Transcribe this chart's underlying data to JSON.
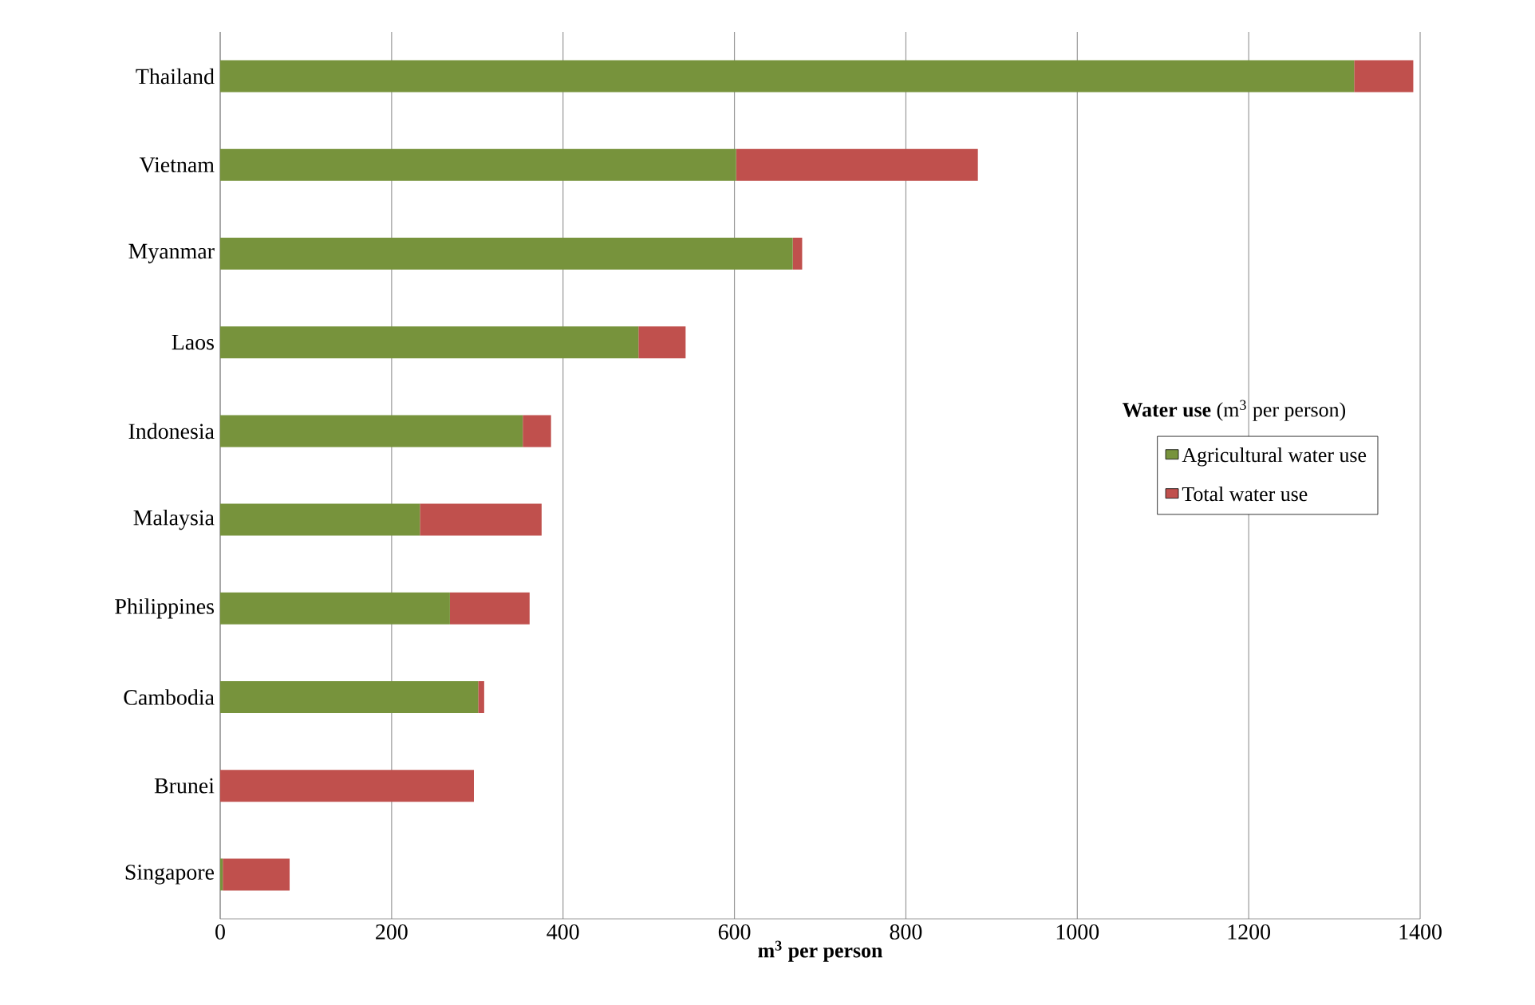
{
  "chart_data": {
    "type": "bar",
    "orientation": "horizontal",
    "stacked": true,
    "categories": [
      "Thailand",
      "Vietnam",
      "Myanmar",
      "Laos",
      "Indonesia",
      "Malaysia",
      "Philippines",
      "Cambodia",
      "Brunei",
      "Singapore"
    ],
    "series": [
      {
        "name": "Agricultural water use",
        "color": "#77933c",
        "values": [
          1323,
          602,
          668,
          488,
          353,
          233,
          268,
          301,
          0,
          3
        ]
      },
      {
        "name": "Total water use",
        "color": "#c0504d",
        "values": [
          69,
          282,
          11,
          55,
          33,
          142,
          93,
          7,
          296,
          78
        ]
      }
    ],
    "xlabel": "m$^{3}$ per person",
    "legend_title": "**Water use** (m$^{3}$ per person)",
    "xlim": [
      0,
      1400
    ],
    "xticks": [
      0,
      200,
      400,
      600,
      800,
      1000,
      1200,
      1400
    ],
    "grid": "x",
    "legend": "right"
  }
}
